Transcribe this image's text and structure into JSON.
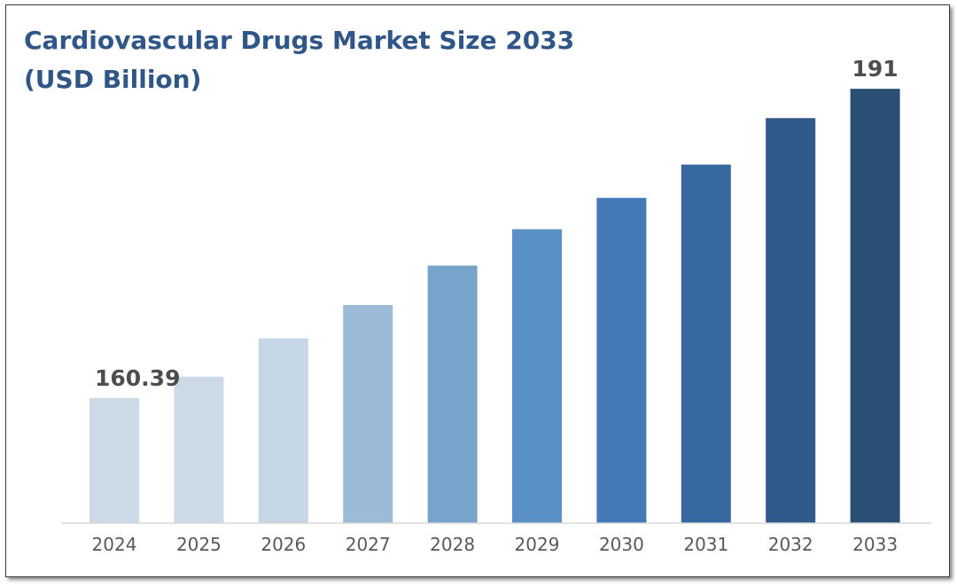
{
  "chart_data": {
    "type": "bar",
    "title": "Cardiovascular Drugs Market Size 2033 (USD Billion)",
    "categories": [
      "2024",
      "2025",
      "2026",
      "2027",
      "2028",
      "2029",
      "2030",
      "2031",
      "2032",
      "2033"
    ],
    "values": [
      160.39,
      162.5,
      166.3,
      169.6,
      173.5,
      177.1,
      180.2,
      183.5,
      188.1,
      191
    ],
    "data_labels": [
      "160.39",
      "",
      "",
      "",
      "",
      "",
      "",
      "",
      "",
      "191"
    ],
    "bar_colors": [
      "#ccd9e6",
      "#ccd9e6",
      "#c5d6e7",
      "#9bbad6",
      "#76a4ca",
      "#5990c6",
      "#4379b7",
      "#3768a0",
      "#305a8a",
      "#294f74"
    ],
    "xlabel": "",
    "ylabel": "",
    "ylim": [
      148,
      194
    ],
    "grid": false,
    "legend": "none"
  }
}
